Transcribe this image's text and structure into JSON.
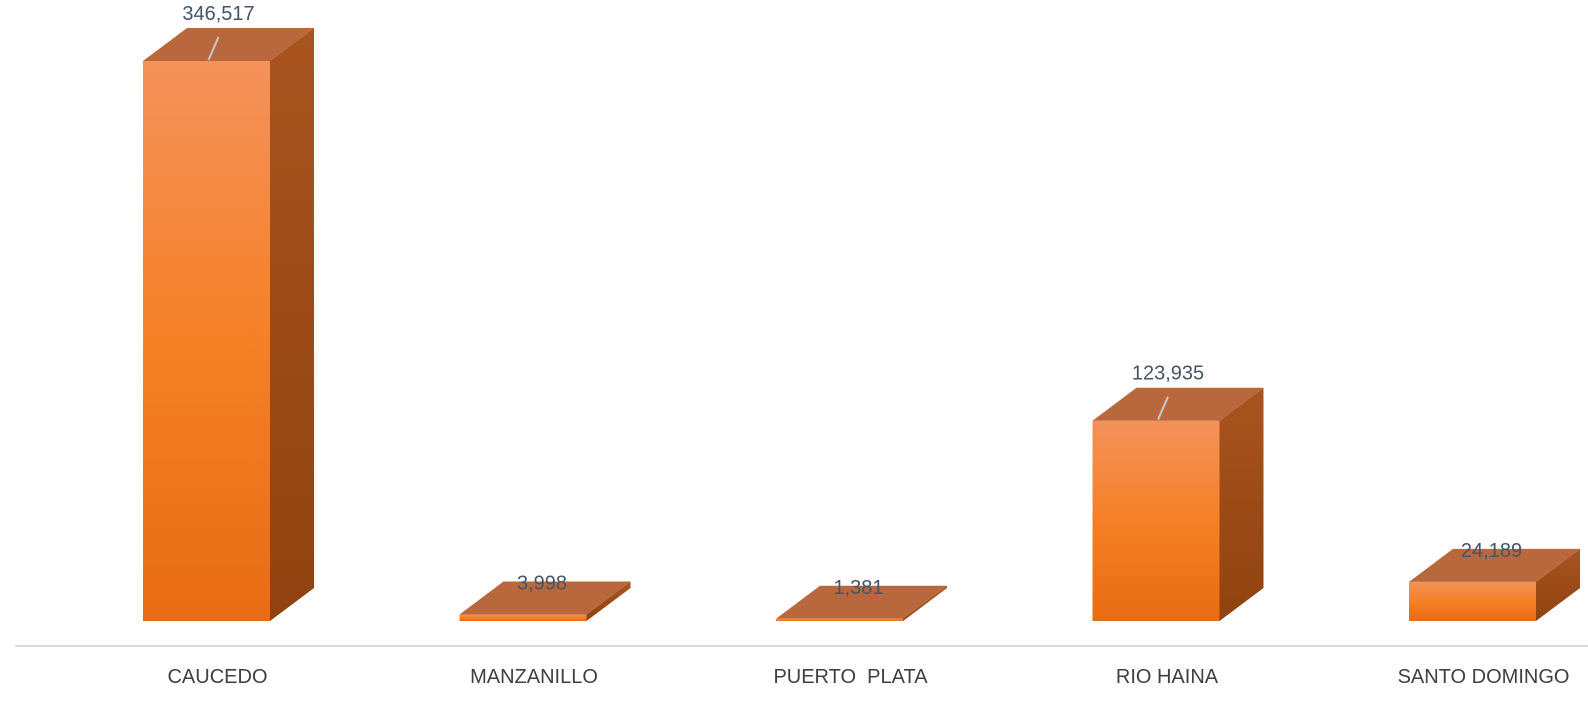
{
  "chart_data": {
    "type": "bar",
    "title": "",
    "xlabel": "",
    "ylabel": "",
    "categories": [
      "CAUCEDO",
      "MANZANILLO",
      "PUERTO  PLATA",
      "RIO HAINA",
      "SANTO DOMINGO"
    ],
    "values": [
      346517,
      3998,
      1381,
      123935,
      24189
    ],
    "data_labels": [
      "346,517",
      "3,998",
      "1,381",
      "123,935",
      "24,189"
    ],
    "ylim": [
      0,
      346517
    ],
    "grid": false,
    "legend": "none",
    "style": "3d-column",
    "colors": {
      "front_top": "#f4925b",
      "front_mid": "#f58026",
      "front_bottom": "#e86c14",
      "side": "#a9541f",
      "side_dark": "#8f420f",
      "top": "#b9683d",
      "axis": "#d9d9d9",
      "leader": "#c8c8c8"
    }
  }
}
